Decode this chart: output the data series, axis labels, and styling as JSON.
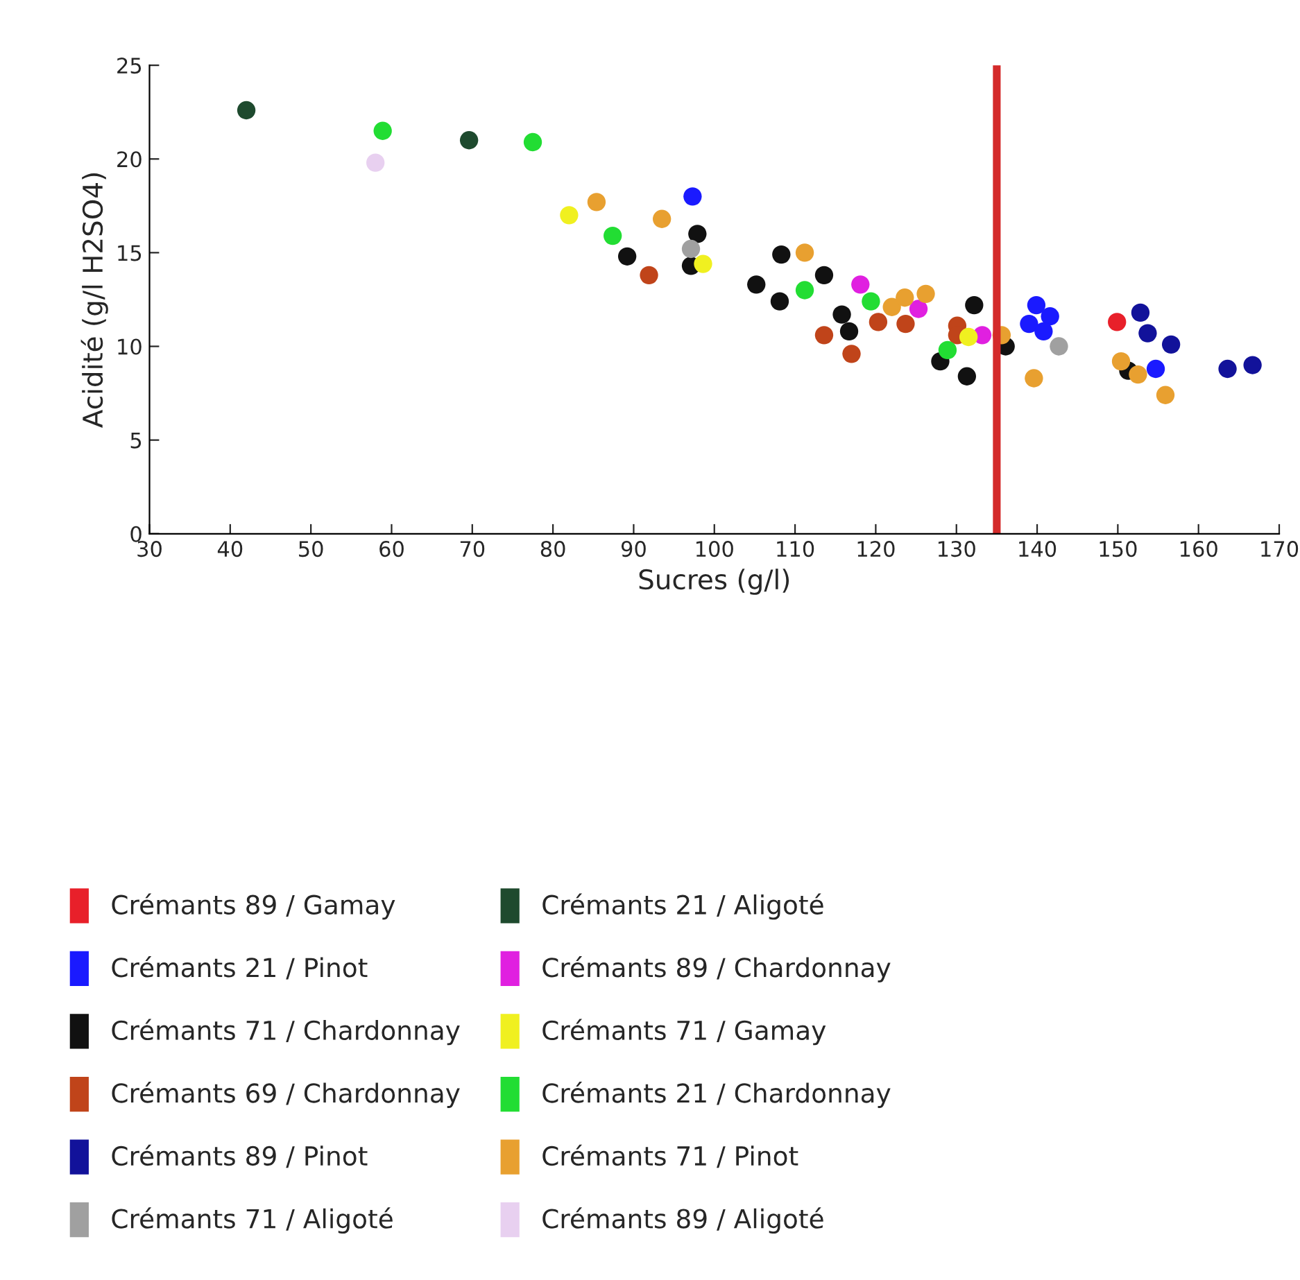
{
  "chart_data": {
    "type": "scatter",
    "xlabel": "Sucres (g/l)",
    "ylabel": "Acidité (g/l H2SO4)",
    "xlim": [
      30,
      170
    ],
    "xticks": [
      30,
      40,
      50,
      60,
      70,
      80,
      90,
      100,
      110,
      120,
      130,
      140,
      150,
      160,
      170
    ],
    "ylim": [
      0,
      25
    ],
    "yticks": [
      0,
      5,
      10,
      15,
      20,
      25
    ],
    "grid": false,
    "legend": "bottom",
    "marker": "circle",
    "ref_lines": [
      {
        "axis": "x",
        "value": 135,
        "color": "#d42a2a"
      }
    ],
    "series": [
      {
        "name": "Crémants 89 / Gamay",
        "color": "#e8202a",
        "x": [
          149.9
        ],
        "values": [
          11.3
        ]
      },
      {
        "name": "Crémants 21 / Pinot",
        "color": "#1a1aff",
        "x": [
          97.3,
          139.9,
          141.6,
          139.0,
          140.8,
          154.7
        ],
        "values": [
          18.0,
          12.2,
          11.6,
          11.2,
          10.8,
          8.8
        ]
      },
      {
        "name": "Crémants 71 / Chardonnay",
        "color": "#111111",
        "x": [
          89.2,
          97.9,
          97.1,
          108.3,
          105.2,
          108.1,
          113.6,
          115.8,
          116.7,
          132.2,
          136.1,
          128.0,
          131.3,
          151.3
        ],
        "values": [
          14.8,
          16.0,
          14.3,
          14.9,
          13.3,
          12.4,
          13.8,
          11.7,
          10.8,
          12.2,
          10.0,
          9.2,
          8.4,
          8.7
        ]
      },
      {
        "name": "Crémants 69 / Chardonnay",
        "color": "#c0441a",
        "x": [
          91.9,
          113.6,
          117.0,
          120.3,
          123.7,
          130.1,
          130.1
        ],
        "values": [
          13.8,
          10.6,
          9.6,
          11.3,
          11.2,
          11.1,
          10.6
        ]
      },
      {
        "name": "Crémants 89 / Pinot",
        "color": "#12129a",
        "x": [
          152.8,
          153.7,
          156.6,
          163.6,
          166.7
        ],
        "values": [
          11.8,
          10.7,
          10.1,
          8.8,
          9.0
        ]
      },
      {
        "name": "Crémants 71 / Aligoté",
        "color": "#a0a0a0",
        "x": [
          97.1,
          142.7
        ],
        "values": [
          15.2,
          10.0
        ]
      },
      {
        "name": "Crémants 21 / Aligoté",
        "color": "#1e4a2e",
        "x": [
          42.0,
          69.6
        ],
        "values": [
          22.6,
          21.0
        ]
      },
      {
        "name": "Crémants 89 / Chardonnay",
        "color": "#e020e0",
        "x": [
          118.1,
          125.3,
          133.2
        ],
        "values": [
          13.3,
          12.0,
          10.6
        ]
      },
      {
        "name": "Crémants 71 / Gamay",
        "color": "#f0f020",
        "x": [
          82.0,
          98.6,
          131.5
        ],
        "values": [
          17.0,
          14.4,
          10.5
        ]
      },
      {
        "name": "Crémants 21 / Chardonnay",
        "color": "#22dd33",
        "x": [
          58.9,
          77.5,
          87.4,
          111.2,
          119.4,
          128.9
        ],
        "values": [
          21.5,
          20.9,
          15.9,
          13.0,
          12.4,
          9.8
        ]
      },
      {
        "name": "Crémants 71 / Pinot",
        "color": "#e8a030",
        "x": [
          85.4,
          93.5,
          111.2,
          126.2,
          135.6,
          139.6,
          150.4,
          152.5,
          155.9,
          122.0,
          123.6
        ],
        "values": [
          17.7,
          16.8,
          15.0,
          12.8,
          10.6,
          8.3,
          9.2,
          8.5,
          7.4,
          12.1,
          12.6
        ]
      },
      {
        "name": "Crémants 89 / Aligoté",
        "color": "#e8d0f0",
        "x": [
          58.0
        ],
        "values": [
          19.8
        ]
      }
    ]
  }
}
